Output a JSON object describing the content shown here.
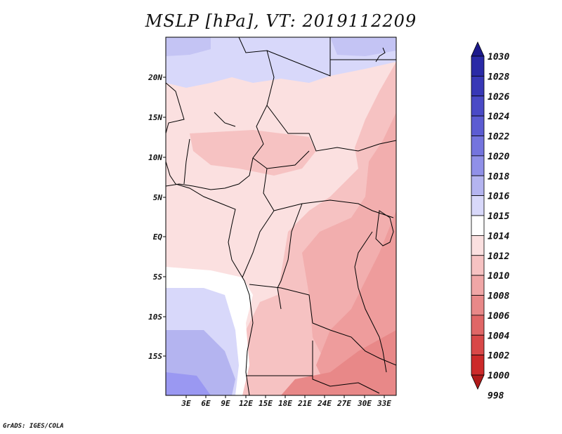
{
  "map": {
    "title": "MSLP [hPa], VT: 2019112209",
    "credit": "GrADS: IGES/COLA",
    "variable_unit": "hPa",
    "lat_labels": [
      "20N",
      "15N",
      "10N",
      "5N",
      "EQ",
      "5S",
      "10S",
      "15S"
    ],
    "lon_labels": [
      "3E",
      "6E",
      "9E",
      "12E",
      "15E",
      "18E",
      "21E",
      "24E",
      "27E",
      "30E",
      "33E"
    ]
  },
  "colorbar": {
    "levels": [
      "1030",
      "1028",
      "1026",
      "1024",
      "1022",
      "1020",
      "1018",
      "1016",
      "1015",
      "1014",
      "1012",
      "1010",
      "1008",
      "1006",
      "1004",
      "1002",
      "1000",
      "998"
    ],
    "colors": [
      "#1c1a8c",
      "#2a2aa6",
      "#3838b6",
      "#4a4ac6",
      "#5c5cd2",
      "#7474de",
      "#9090e8",
      "#b4b4f0",
      "#d8d8fa",
      "#ffffff",
      "#fbe0e0",
      "#f6c2c2",
      "#f0a6a6",
      "#e88888",
      "#e06666",
      "#d84848",
      "#cc2a2a",
      "#b01a1a"
    ]
  },
  "legend_colors": {
    "high_pressure": "#9a98f2",
    "low_pressure": "#ec8e8e",
    "neutral": "#ffffff"
  }
}
